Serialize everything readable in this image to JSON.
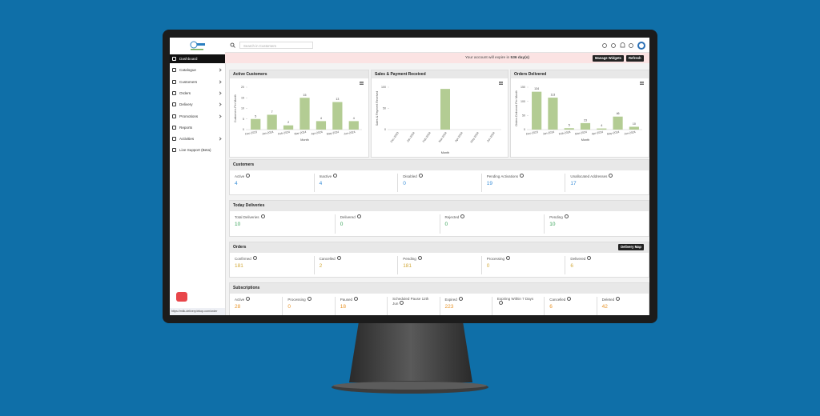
{
  "search_placeholder": "Search in Customers",
  "sidebar": {
    "items": [
      "Dashboard",
      "Catalogue",
      "Customers",
      "Orders",
      "Delivery",
      "Promotions",
      "Reports",
      "Activities",
      "Live Support (Beta)"
    ],
    "status_url": "https://milk-delivery.tekop.com/order"
  },
  "banner": {
    "text": "Your account will expire in",
    "days": "536 day(s)"
  },
  "buttons": {
    "manage": "Manage Widgets",
    "refresh": "Refresh"
  },
  "chart_data": [
    {
      "type": "bar",
      "title": "Active Customers",
      "y_label": "Customers Per Month",
      "x_label": "Month",
      "categories": [
        "Dec-2023",
        "Jan-2024",
        "Feb-2024",
        "Mar-2024",
        "Apr-2024",
        "May-2024",
        "Jun-2024"
      ],
      "values": [
        5,
        7,
        2,
        15,
        4,
        13,
        4
      ],
      "color": "#b3cc93",
      "ylim": [
        0,
        20
      ],
      "yticks": [
        0,
        5,
        10,
        15,
        20
      ],
      "grid": false,
      "data_labels": true
    },
    {
      "type": "bar",
      "title": "Sales & Payment Received",
      "y_label": "Sales & Payment Received",
      "x_label": "Month",
      "categories": [
        "Dec-2023",
        "Jan-2024",
        "Feb-2024",
        "Mar-2024",
        "Apr-2024",
        "May-2024",
        "Jun-2024"
      ],
      "values": [
        0,
        0,
        0,
        96,
        0,
        0,
        0
      ],
      "color": "#b3cc93",
      "ylim": [
        0,
        100
      ],
      "yticks": [
        0,
        50,
        100
      ],
      "grid": false,
      "data_labels": false
    },
    {
      "type": "bar",
      "title": "Orders Delivered",
      "y_label": "Orders Delivered Per Month",
      "x_label": "Month",
      "categories": [
        "Dec-2023",
        "Jan-2024",
        "Feb-2024",
        "Mar-2024",
        "Apr-2024",
        "May-2024",
        "Jun-2024"
      ],
      "values": [
        134,
        113,
        5,
        23,
        4,
        46,
        10
      ],
      "color": "#b3cc93",
      "ylim": [
        0,
        150
      ],
      "yticks": [
        0,
        50,
        100,
        150
      ],
      "grid": false,
      "data_labels": true
    }
  ],
  "cards": [
    {
      "title": "Customers",
      "color": "#3b8fd8",
      "items": [
        {
          "label": "Active",
          "value": "4"
        },
        {
          "label": "Inactive",
          "value": "4"
        },
        {
          "label": "Disabled",
          "value": "0"
        },
        {
          "label": "Pending Activations",
          "value": "19"
        },
        {
          "label": "Unallocated Addresses",
          "value": "17"
        }
      ]
    },
    {
      "title": "Today Deliveries",
      "color": "#3aa35a",
      "items": [
        {
          "label": "Total Deliveries",
          "value": "10"
        },
        {
          "label": "Delivered",
          "value": "0"
        },
        {
          "label": "Rejected",
          "value": "0"
        },
        {
          "label": "Pending",
          "value": "10"
        }
      ]
    },
    {
      "title": "Orders",
      "button": "Delivery Map",
      "color": "#d3aa3c",
      "items": [
        {
          "label": "Confirmed",
          "value": "181"
        },
        {
          "label": "Cancelled",
          "value": "2"
        },
        {
          "label": "Pending",
          "value": "181"
        },
        {
          "label": "Processing",
          "value": "0"
        },
        {
          "label": "Delivered",
          "value": "6"
        }
      ]
    },
    {
      "title": "Subscriptions",
      "color": "#e8952a",
      "items": [
        {
          "label": "Active",
          "value": "28"
        },
        {
          "label": "Processing",
          "value": "0"
        },
        {
          "label": "Paused",
          "value": "18"
        },
        {
          "label": "Scheduled Pause 12th Jun"
        },
        {
          "label": "Expired",
          "value": "223"
        },
        {
          "label": "Expiring Within 7 Days"
        },
        {
          "label": "Cancelled",
          "value": "6"
        },
        {
          "label": "Deleted",
          "value": "42"
        }
      ]
    }
  ]
}
